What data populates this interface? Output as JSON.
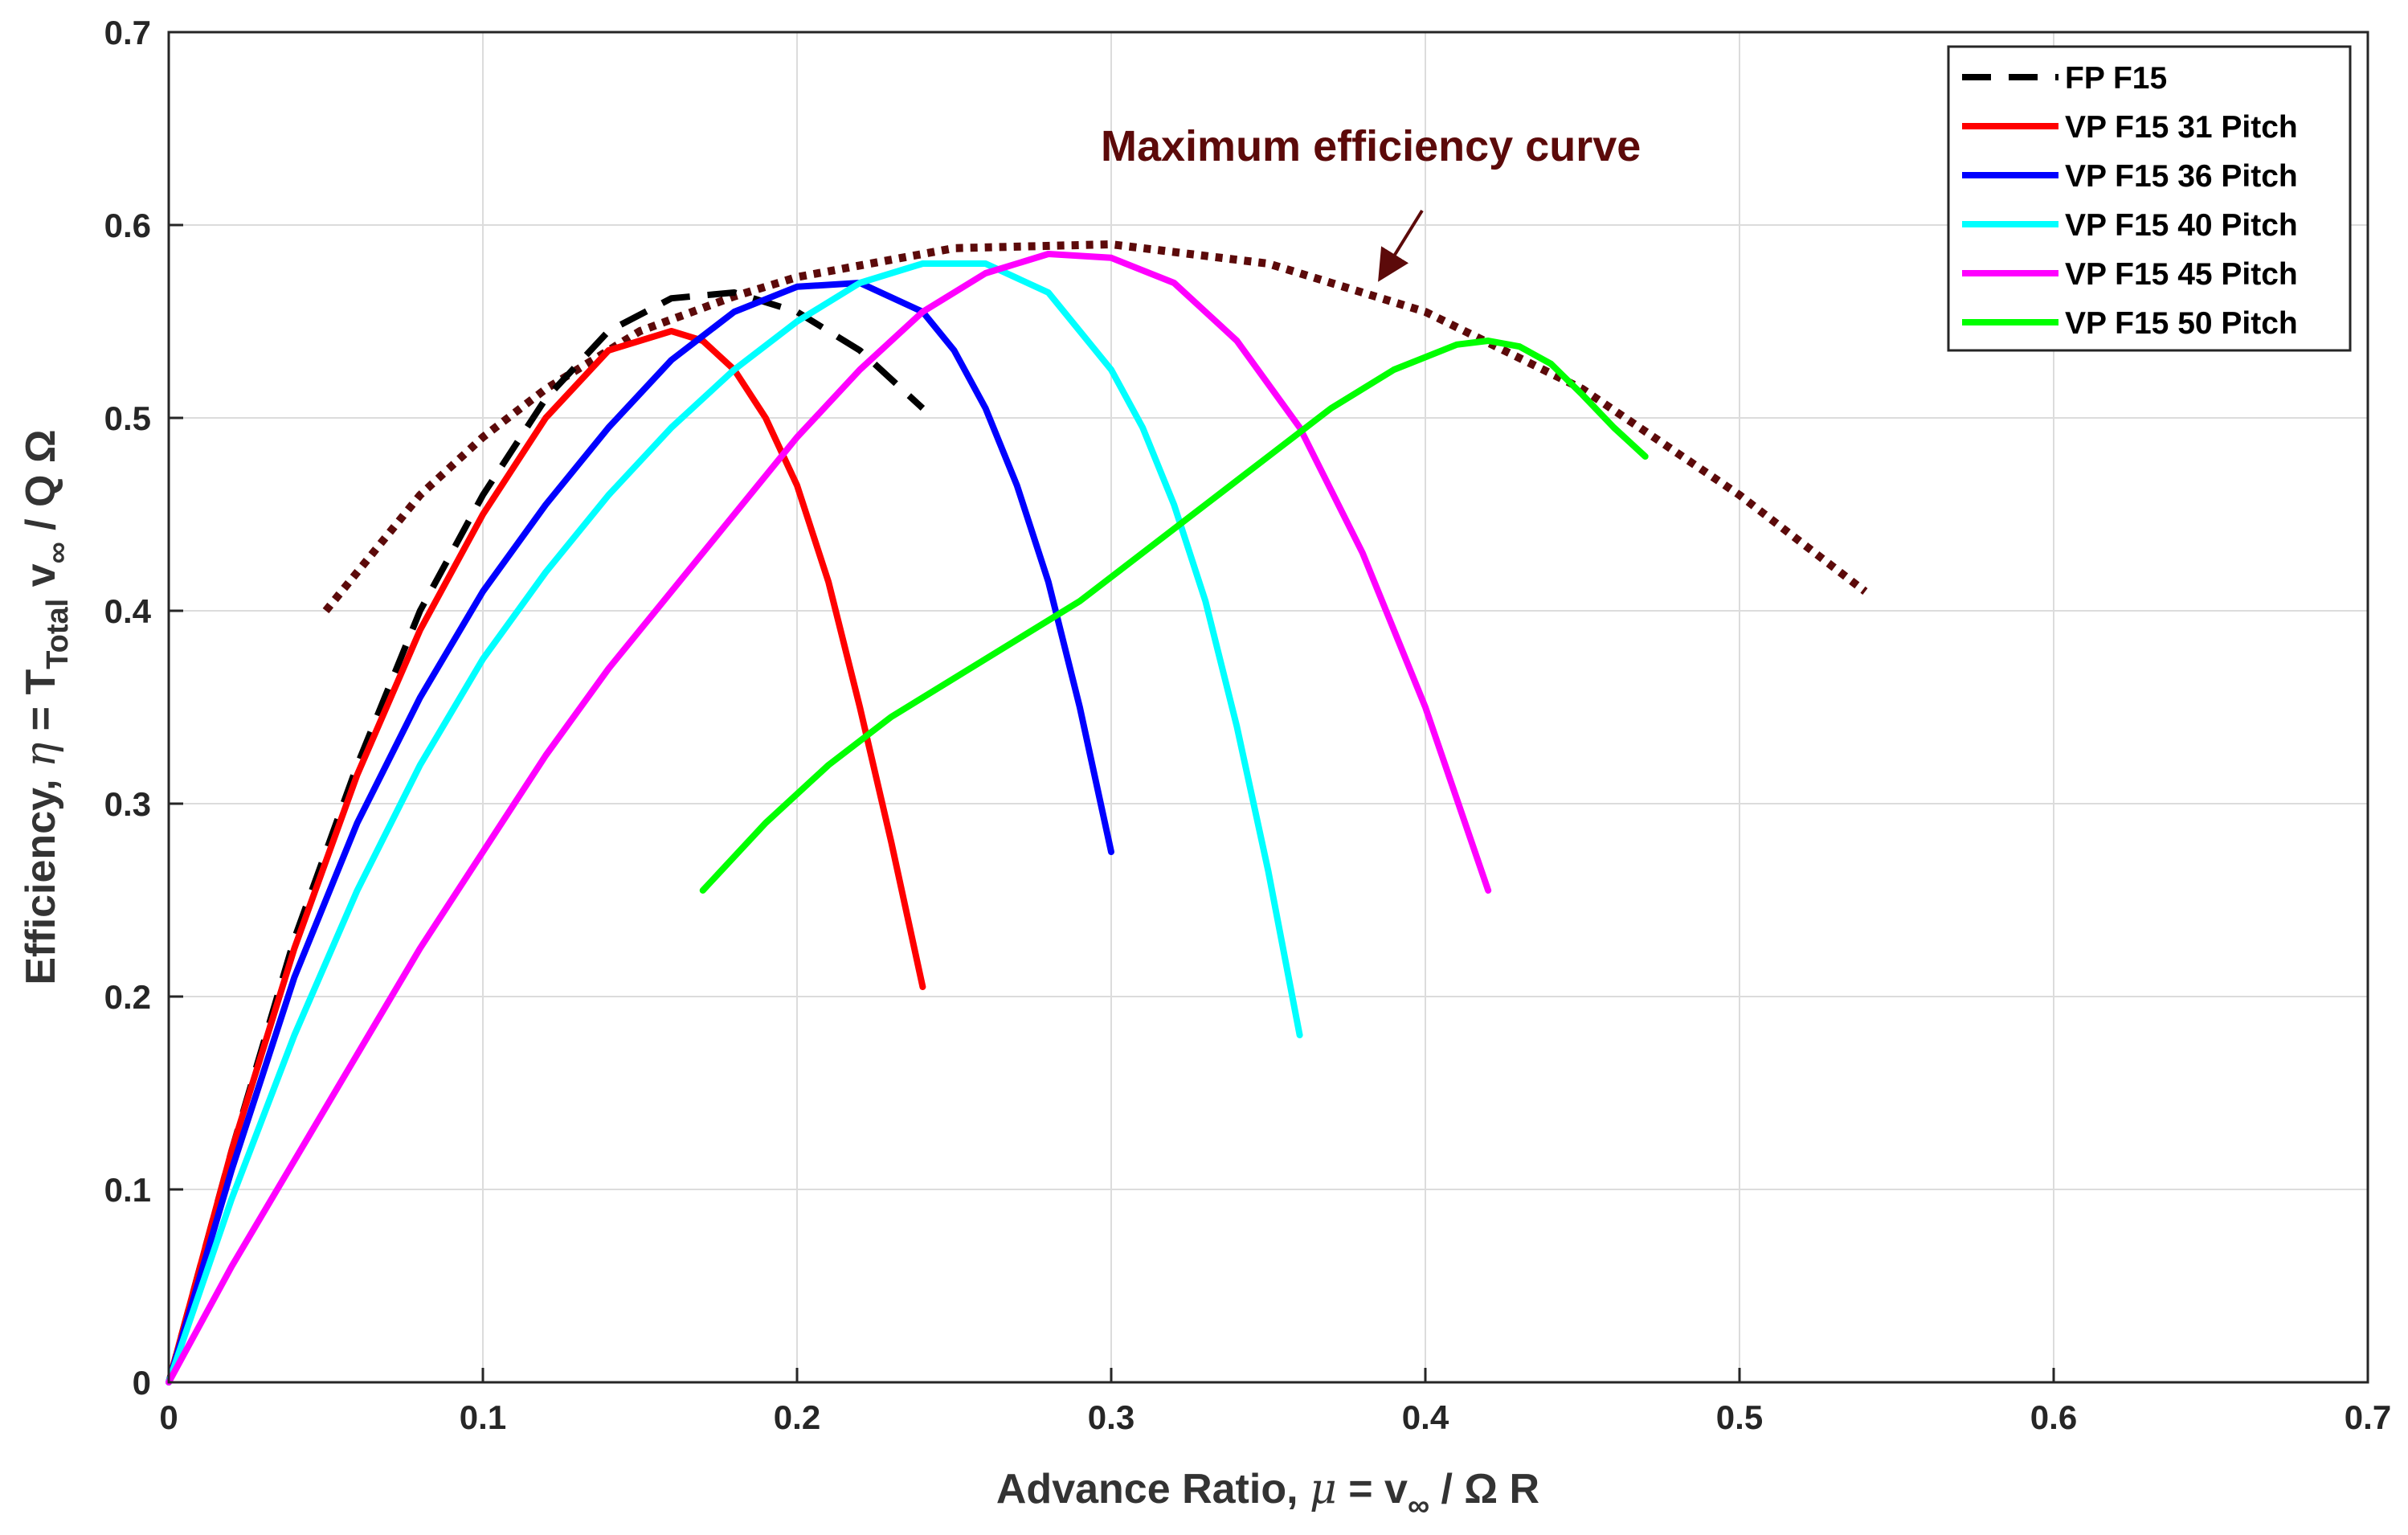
{
  "chart_data": {
    "type": "line",
    "title": "",
    "xlabel": {
      "prefix": "Advance Ratio, ",
      "mu": "μ",
      "eq": " = v",
      "sub": "∞",
      "rest": " / Ω R"
    },
    "ylabel": {
      "prefix": "Efficiency, ",
      "eta": "η",
      "eq": " = T",
      "sub1": "Total",
      "mid": "  v",
      "sub2": "∞",
      "rest": " / Q Ω"
    },
    "xlim": [
      0,
      0.7
    ],
    "ylim": [
      0,
      0.7
    ],
    "xticks": [
      0,
      0.1,
      0.2,
      0.3,
      0.4,
      0.5,
      0.6,
      0.7
    ],
    "xtick_labels": [
      "0",
      "0.1",
      "0.2",
      "0.3",
      "0.4",
      "0.5",
      "0.6",
      "0.7"
    ],
    "yticks": [
      0,
      0.1,
      0.2,
      0.3,
      0.4,
      0.5,
      0.6,
      0.7
    ],
    "ytick_labels": [
      "0",
      "0.1",
      "0.2",
      "0.3",
      "0.4",
      "0.5",
      "0.6",
      "0.7"
    ],
    "grid": true,
    "legend_position": "top-right",
    "annotation": {
      "text": "Maximum efficiency curve",
      "arrow_to": [
        0.386,
        0.565
      ],
      "color": "#5c0a0a"
    },
    "series": [
      {
        "name": "FP F15",
        "color": "#000000",
        "style": "dashed",
        "x": [
          0,
          0.02,
          0.04,
          0.06,
          0.08,
          0.1,
          0.12,
          0.14,
          0.16,
          0.18,
          0.2,
          0.22,
          0.24
        ],
        "y": [
          0,
          0.12,
          0.23,
          0.32,
          0.4,
          0.46,
          0.51,
          0.545,
          0.562,
          0.565,
          0.555,
          0.535,
          0.505
        ]
      },
      {
        "name": "VP F15 31 Pitch",
        "color": "#ff0000",
        "style": "solid",
        "x": [
          0,
          0.02,
          0.04,
          0.06,
          0.08,
          0.1,
          0.12,
          0.14,
          0.16,
          0.17,
          0.18,
          0.19,
          0.2,
          0.21,
          0.22,
          0.23,
          0.24
        ],
        "y": [
          0,
          0.12,
          0.225,
          0.315,
          0.39,
          0.45,
          0.5,
          0.535,
          0.545,
          0.54,
          0.525,
          0.5,
          0.465,
          0.415,
          0.35,
          0.28,
          0.205
        ]
      },
      {
        "name": "VP F15 36 Pitch",
        "color": "#0000ff",
        "style": "solid",
        "x": [
          0,
          0.02,
          0.04,
          0.06,
          0.08,
          0.1,
          0.12,
          0.14,
          0.16,
          0.18,
          0.2,
          0.22,
          0.24,
          0.25,
          0.26,
          0.27,
          0.28,
          0.29,
          0.3
        ],
        "y": [
          0,
          0.11,
          0.21,
          0.29,
          0.355,
          0.41,
          0.455,
          0.495,
          0.53,
          0.555,
          0.568,
          0.57,
          0.555,
          0.535,
          0.505,
          0.465,
          0.415,
          0.35,
          0.275
        ]
      },
      {
        "name": "VP F15 40 Pitch",
        "color": "#00ffff",
        "style": "solid",
        "x": [
          0,
          0.02,
          0.04,
          0.06,
          0.08,
          0.1,
          0.12,
          0.14,
          0.16,
          0.18,
          0.2,
          0.22,
          0.24,
          0.26,
          0.28,
          0.3,
          0.31,
          0.32,
          0.33,
          0.34,
          0.35,
          0.36
        ],
        "y": [
          0,
          0.095,
          0.18,
          0.255,
          0.32,
          0.375,
          0.42,
          0.46,
          0.495,
          0.525,
          0.55,
          0.57,
          0.58,
          0.58,
          0.565,
          0.525,
          0.495,
          0.455,
          0.405,
          0.34,
          0.265,
          0.18
        ]
      },
      {
        "name": "VP F15 45 Pitch",
        "color": "#ff00ff",
        "style": "solid",
        "x": [
          0,
          0.02,
          0.04,
          0.06,
          0.08,
          0.1,
          0.12,
          0.14,
          0.16,
          0.18,
          0.2,
          0.22,
          0.24,
          0.26,
          0.28,
          0.3,
          0.32,
          0.34,
          0.36,
          0.38,
          0.4,
          0.42
        ],
        "y": [
          0,
          0.06,
          0.115,
          0.17,
          0.225,
          0.275,
          0.325,
          0.37,
          0.41,
          0.45,
          0.49,
          0.525,
          0.555,
          0.575,
          0.585,
          0.583,
          0.57,
          0.54,
          0.495,
          0.43,
          0.35,
          0.255
        ]
      },
      {
        "name": "VP F15 50 Pitch",
        "color": "#00ff00",
        "style": "solid",
        "x": [
          0.17,
          0.19,
          0.21,
          0.23,
          0.25,
          0.27,
          0.29,
          0.31,
          0.33,
          0.35,
          0.37,
          0.39,
          0.41,
          0.42,
          0.43,
          0.44,
          0.45,
          0.46,
          0.47
        ],
        "y": [
          0.255,
          0.29,
          0.32,
          0.345,
          0.365,
          0.385,
          0.405,
          0.43,
          0.455,
          0.48,
          0.505,
          0.525,
          0.538,
          0.54,
          0.537,
          0.528,
          0.512,
          0.495,
          0.48
        ]
      },
      {
        "name": "Maximum efficiency curve",
        "color": "#5c0a0a",
        "style": "dotted",
        "in_legend": false,
        "x": [
          0.05,
          0.08,
          0.1,
          0.12,
          0.15,
          0.18,
          0.2,
          0.25,
          0.3,
          0.35,
          0.4,
          0.45,
          0.5,
          0.54
        ],
        "y": [
          0.4,
          0.46,
          0.49,
          0.515,
          0.545,
          0.563,
          0.573,
          0.588,
          0.59,
          0.58,
          0.555,
          0.515,
          0.46,
          0.41
        ]
      }
    ]
  }
}
